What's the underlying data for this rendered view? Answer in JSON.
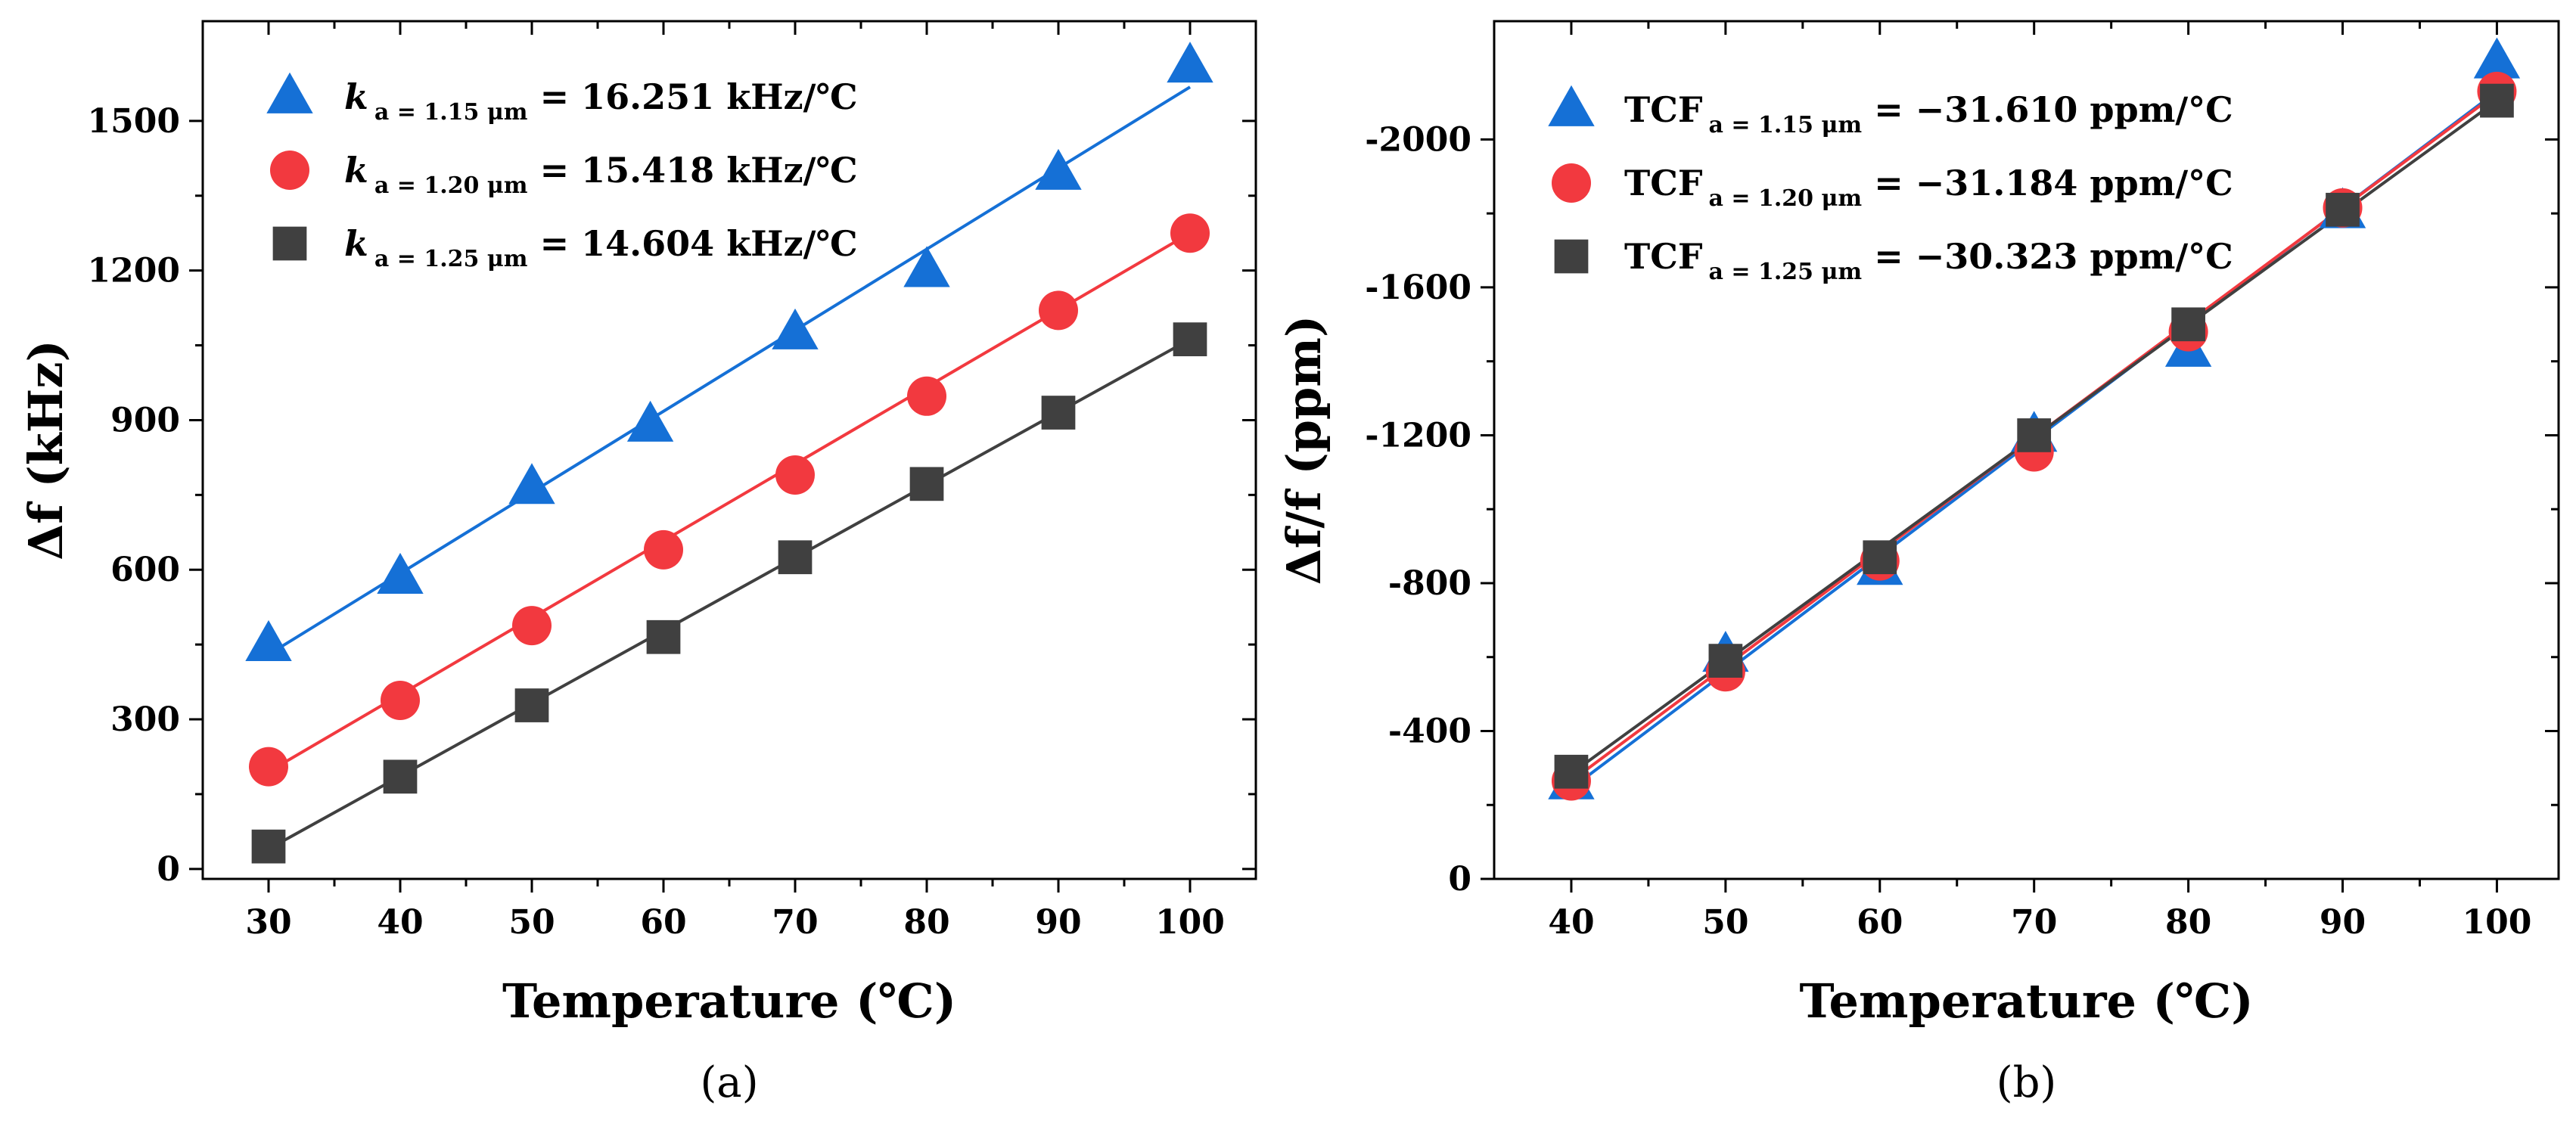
{
  "chart_data": [
    {
      "type": "scatter",
      "panel_label": "(a)",
      "title": "",
      "xlabel": "Temperature (℃)",
      "ylabel": "Δf (kHz)",
      "xlim": [
        25,
        105
      ],
      "ylim": [
        -20,
        1700
      ],
      "xticks": [
        30,
        40,
        50,
        60,
        70,
        80,
        90,
        100
      ],
      "yticks": [
        0,
        300,
        600,
        900,
        1200,
        1500
      ],
      "legend_position": "top-left",
      "series": [
        {
          "name_prefix": "k",
          "name_sub": "a = 1.15 μm",
          "name_value": " = 16.251 kHz/℃",
          "marker": "triangle",
          "color": "#1570d6",
          "x": [
            30,
            40,
            50,
            59,
            70,
            80,
            90,
            100
          ],
          "y": [
            450,
            585,
            765,
            890,
            1075,
            1200,
            1395,
            1610
          ],
          "fit": {
            "x": [
              30,
              100
            ],
            "y": [
              430,
              1568
            ]
          }
        },
        {
          "name_prefix": "k",
          "name_sub": "a = 1.20 μm",
          "name_value": " = 15.418 kHz/℃",
          "marker": "circle",
          "color": "#f2393f",
          "x": [
            30,
            40,
            50,
            60,
            70,
            80,
            90,
            100
          ],
          "y": [
            205,
            338,
            488,
            640,
            790,
            948,
            1120,
            1275
          ],
          "fit": {
            "x": [
              30,
              100
            ],
            "y": [
              195,
              1275
            ]
          }
        },
        {
          "name_prefix": "k",
          "name_sub": "a = 1.25 μm",
          "name_value": " = 14.604 kHz/℃",
          "marker": "square",
          "color": "#404040",
          "x": [
            30,
            40,
            50,
            60,
            70,
            80,
            90,
            100
          ],
          "y": [
            45,
            185,
            328,
            465,
            625,
            772,
            915,
            1062
          ],
          "fit": {
            "x": [
              30,
              100
            ],
            "y": [
              40,
              1062
            ]
          }
        }
      ]
    },
    {
      "type": "scatter",
      "panel_label": "(b)",
      "title": "",
      "xlabel": "Temperature (℃)",
      "ylabel": "Δf/f (ppm)",
      "xlim": [
        35,
        104
      ],
      "ylim": [
        0,
        -2320
      ],
      "xticks": [
        40,
        50,
        60,
        70,
        80,
        90,
        100
      ],
      "yticks": [
        0,
        -400,
        -800,
        -1200,
        -1600,
        -2000
      ],
      "legend_position": "top-left",
      "series": [
        {
          "name_prefix": "TCF",
          "name_sub": "a = 1.15 μm",
          "name_value": " = −31.610 ppm/°C",
          "marker": "triangle",
          "color": "#1570d6",
          "x": [
            40,
            50,
            60,
            70,
            80,
            90,
            100
          ],
          "y": [
            -260,
            -605,
            -840,
            -1200,
            -1430,
            -1805,
            -2210
          ],
          "fit": {
            "x": [
              40,
              100
            ],
            "y": [
              -245,
              -2130
            ]
          }
        },
        {
          "name_prefix": "TCF",
          "name_sub": "a = 1.20 μm",
          "name_value": " = −31.184 ppm/°C",
          "marker": "circle",
          "color": "#f2393f",
          "x": [
            40,
            50,
            60,
            70,
            80,
            90,
            100
          ],
          "y": [
            -265,
            -560,
            -860,
            -1155,
            -1480,
            -1815,
            -2130
          ],
          "fit": {
            "x": [
              40,
              100
            ],
            "y": [
              -265,
              -2125
            ]
          }
        },
        {
          "name_prefix": "TCF",
          "name_sub": "a = 1.25 μm",
          "name_value": " = −30.323 ppm/°C",
          "marker": "square",
          "color": "#404040",
          "x": [
            40,
            50,
            60,
            70,
            80,
            90,
            100
          ],
          "y": [
            -290,
            -590,
            -870,
            -1200,
            -1500,
            -1810,
            -2105
          ],
          "fit": {
            "x": [
              40,
              100
            ],
            "y": [
              -285,
              -2105
            ]
          }
        }
      ]
    }
  ]
}
